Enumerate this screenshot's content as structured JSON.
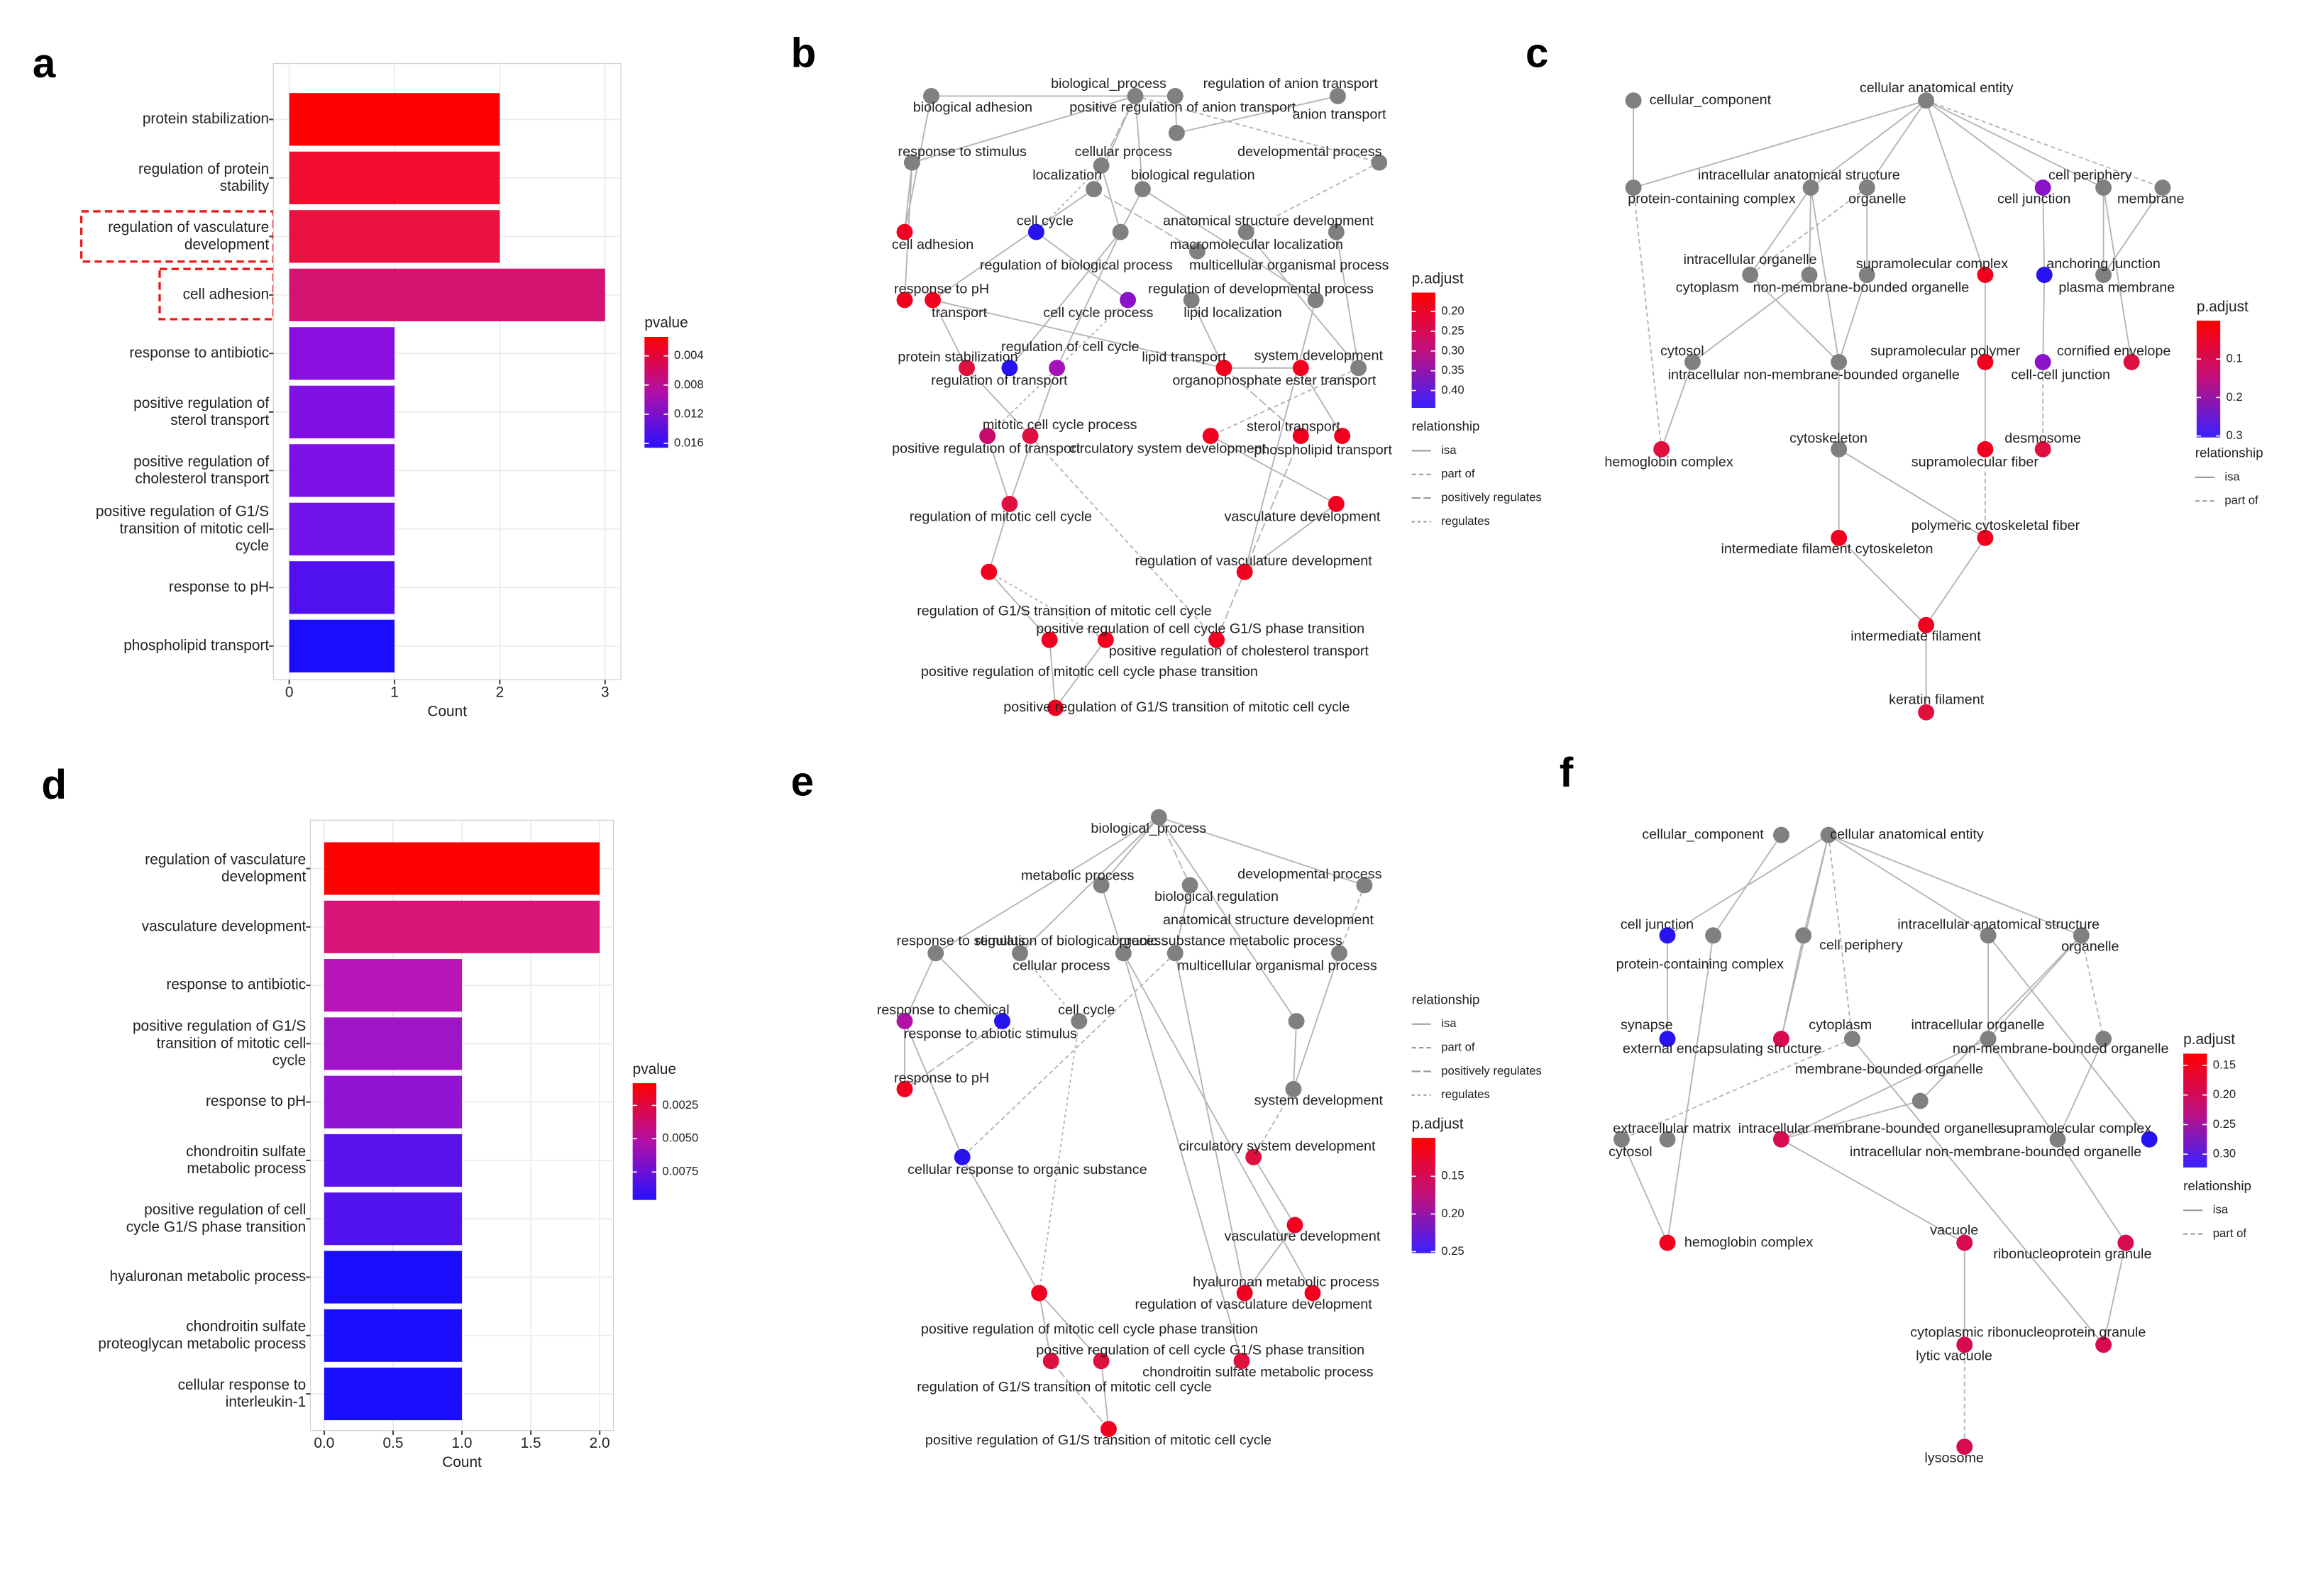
{
  "panels": [
    "a",
    "b",
    "c",
    "d",
    "e",
    "f"
  ],
  "chart_data": [
    {
      "type": "bar",
      "orientation": "horizontal",
      "xlabel": "Count",
      "categories": [
        "protein stabilization",
        "regulation of protein\nstability",
        "regulation of vasculature\ndevelopment",
        "cell adhesion",
        "response to antibiotic",
        "positive regulation of\nsterol transport",
        "positive regulation of\ncholesterol transport",
        "positive regulation of G1/S\ntransition of mitotic cell\ncycle",
        "response to pH",
        "phospholipid transport"
      ],
      "values": [
        2,
        2,
        2,
        3,
        1,
        1,
        1,
        1,
        1,
        1
      ],
      "colors": [
        "#ff0000",
        "#f20d2e",
        "#ea1040",
        "#d41270",
        "#8a0ee0",
        "#8010e4",
        "#7c10e6",
        "#7012ea",
        "#5010f0",
        "#1a0cff"
      ],
      "xlim": [
        -0.15,
        3.15
      ],
      "xticks": [
        0,
        1,
        2,
        3
      ],
      "grid": true,
      "legend": {
        "title": "pvalue",
        "lim": [
          0.0014,
          0.0166
        ],
        "ticks": [
          0.004,
          0.008,
          0.012,
          0.016
        ],
        "colors": [
          "#ff0000",
          "#b010a8",
          "#2a10ff"
        ]
      }
    },
    {
      "type": "bar",
      "orientation": "horizontal",
      "xlabel": "Count",
      "categories": [
        "regulation of vasculature\ndevelopment",
        "vasculature development",
        "response to antibiotic",
        "positive regulation of G1/S\ntransition of mitotic cell\ncycle",
        "response to pH",
        "chondroitin sulfate\nmetabolic process",
        "positive regulation of cell\ncycle G1/S phase transition",
        "hyaluronan metabolic process",
        "chondroitin sulfate\nproteoglycan metabolic process",
        "cellular response to\ninterleukin-1"
      ],
      "values": [
        2,
        2,
        1,
        1,
        1,
        1,
        1,
        1,
        1,
        1
      ],
      "colors": [
        "#ff0000",
        "#d81478",
        "#b814b8",
        "#a014c8",
        "#9014d2",
        "#5a12ec",
        "#5212ee",
        "#1a0cff",
        "#1a0cff",
        "#1a0cff"
      ],
      "xlim": [
        -0.1,
        2.1
      ],
      "xticks": [
        {
          "value": 0,
          "label": "0.0"
        },
        {
          "value": 0.5,
          "label": "0.5"
        },
        {
          "value": 1,
          "label": "1.0"
        },
        {
          "value": 1.5,
          "label": "1.5"
        },
        {
          "value": 2,
          "label": "2.0"
        }
      ],
      "grid": true,
      "legend": {
        "title": "pvalue",
        "lim": [
          0.00083,
          0.0096
        ],
        "ticks": [
          0.0025,
          {
            "value": 0.005,
            "label": "0.0050"
          },
          0.0075
        ],
        "colors": [
          "#ff0000",
          "#b010a8",
          "#2a10ff"
        ]
      }
    }
  ],
  "networks": {
    "b": {
      "nodes": [
        {
          "label": "biological adhesion",
          "color": "#808080"
        },
        {
          "label": "biological_process",
          "color": "#808080"
        },
        {
          "label": "regulation of anion transport",
          "color": "#808080"
        },
        {
          "label": "positive regulation of anion transport",
          "color": "#808080"
        },
        {
          "label": "anion transport",
          "color": "#808080"
        },
        {
          "label": "response to stimulus",
          "color": "#808080"
        },
        {
          "label": "cellular process",
          "color": "#808080"
        },
        {
          "label": "developmental process",
          "color": "#808080"
        },
        {
          "label": "localization",
          "color": "#808080"
        },
        {
          "label": "biological regulation",
          "color": "#808080"
        },
        {
          "label": "cell cycle",
          "color": "#2613f0"
        },
        {
          "label": "anatomical structure development",
          "color": "#808080"
        },
        {
          "label": "cell adhesion",
          "color": "#f2001f"
        },
        {
          "label": "macromolecular localization",
          "color": "#808080"
        },
        {
          "label": "multicellular organismal process",
          "color": "#808080"
        },
        {
          "label": "regulation of biological process",
          "color": "#808080"
        },
        {
          "label": "response to pH",
          "color": "#f2001f"
        },
        {
          "label": "regulation of developmental process",
          "color": "#808080"
        },
        {
          "label": "transport",
          "color": "#f2001f"
        },
        {
          "label": "cell cycle process",
          "color": "#8a12c8"
        },
        {
          "label": "lipid localization",
          "color": "#808080"
        },
        {
          "label": "regulation of cell cycle",
          "color": "#a412b8"
        },
        {
          "label": "protein stabilization",
          "color": "#2613f0"
        },
        {
          "label": "lipid transport",
          "color": "#f2001f"
        },
        {
          "label": "system development",
          "color": "#808080"
        },
        {
          "label": "regulation of transport",
          "color": "#e0103e"
        },
        {
          "label": "organophosphate ester transport",
          "color": "#f2001f"
        },
        {
          "label": "sterol transport",
          "color": "#f2001f"
        },
        {
          "label": "mitotic cell cycle process",
          "color": "#c80a6a"
        },
        {
          "label": "positive regulation of transport",
          "color": "#e0103e"
        },
        {
          "label": "circulatory system development",
          "color": "#f2001f"
        },
        {
          "label": "phospholipid transport",
          "color": "#f2001f"
        },
        {
          "label": "regulation of mitotic cell cycle",
          "color": "#e0103e"
        },
        {
          "label": "vasculature development",
          "color": "#f2001f"
        },
        {
          "label": "regulation of vasculature development",
          "color": "#f2001f"
        },
        {
          "label": "regulation of G1/S transition of mitotic cell cycle",
          "color": "#f2001f"
        },
        {
          "label": "positive regulation of cell cycle G1/S phase transition",
          "color": "#f2001f"
        },
        {
          "label": "positive regulation of cholesterol transport",
          "color": "#f2001f"
        },
        {
          "label": "positive regulation of mitotic cell cycle phase transition",
          "color": "#f2001f"
        },
        {
          "label": "positive regulation of G1/S transition of mitotic cell cycle",
          "color": "#f2001f"
        }
      ],
      "legend": {
        "title": "p.adjust",
        "lim": [
          0.152,
          0.444
        ],
        "ticks": [
          {
            "value": 0.2,
            "label": "0.20"
          },
          0.25,
          {
            "value": 0.3,
            "label": "0.30"
          },
          0.35,
          {
            "value": 0.4,
            "label": "0.40"
          }
        ],
        "colors": [
          "#ff0000",
          "#c0107c",
          "#3a20ff"
        ]
      },
      "relationship": {
        "title": "relationship",
        "items": [
          "isa",
          "part of",
          "positively regulates",
          "regulates"
        ]
      }
    },
    "c": {
      "nodes": [
        {
          "label": "cellular_component",
          "color": "#808080"
        },
        {
          "label": "cellular anatomical entity",
          "color": "#808080"
        },
        {
          "label": "intracellular anatomical structure",
          "color": "#808080"
        },
        {
          "label": "cell periphery",
          "color": "#808080"
        },
        {
          "label": "protein-containing complex",
          "color": "#808080"
        },
        {
          "label": "organelle",
          "color": "#808080"
        },
        {
          "label": "cell junction",
          "color": "#8a12c8"
        },
        {
          "label": "membrane",
          "color": "#808080"
        },
        {
          "label": "intracellular organelle",
          "color": "#808080"
        },
        {
          "label": "supramolecular complex",
          "color": "#f2001f"
        },
        {
          "label": "anchoring junction",
          "color": "#2613f0"
        },
        {
          "label": "cytoplasm",
          "color": "#808080"
        },
        {
          "label": "non-membrane-bounded organelle",
          "color": "#808080"
        },
        {
          "label": "plasma membrane",
          "color": "#808080"
        },
        {
          "label": "cytosol",
          "color": "#808080"
        },
        {
          "label": "supramolecular polymer",
          "color": "#f2001f"
        },
        {
          "label": "cornified envelope",
          "color": "#e0103e"
        },
        {
          "label": "intracellular non-membrane-bounded organelle",
          "color": "#808080"
        },
        {
          "label": "cell-cell junction",
          "color": "#8a12c8"
        },
        {
          "label": "cytoskeleton",
          "color": "#808080"
        },
        {
          "label": "desmosome",
          "color": "#e0103e"
        },
        {
          "label": "hemoglobin complex",
          "color": "#e0103e"
        },
        {
          "label": "supramolecular fiber",
          "color": "#f2001f"
        },
        {
          "label": "polymeric cytoskeletal fiber",
          "color": "#f2001f"
        },
        {
          "label": "intermediate filament cytoskeleton",
          "color": "#f2001f"
        },
        {
          "label": "intermediate filament",
          "color": "#f2001f"
        },
        {
          "label": "keratin filament",
          "color": "#e0103e"
        }
      ],
      "legend": {
        "title": "p.adjust",
        "lim": [
          0.0,
          0.304
        ],
        "ticks": [
          0.1,
          0.2,
          0.3
        ],
        "colors": [
          "#ff0000",
          "#c0107c",
          "#3a20ff"
        ]
      },
      "relationship": {
        "title": "relationship",
        "items": [
          "isa",
          "part of"
        ]
      }
    },
    "e": {
      "nodes": [
        {
          "label": "biological_process",
          "color": "#808080"
        },
        {
          "label": "developmental process",
          "color": "#808080"
        },
        {
          "label": "metabolic process",
          "color": "#808080"
        },
        {
          "label": "biological regulation",
          "color": "#808080"
        },
        {
          "label": "anatomical structure development",
          "color": "#808080"
        },
        {
          "label": "response to stimulus",
          "color": "#808080"
        },
        {
          "label": "regulation of biological process",
          "color": "#808080"
        },
        {
          "label": "organic substance metabolic process",
          "color": "#808080"
        },
        {
          "label": "cellular process",
          "color": "#808080"
        },
        {
          "label": "multicellular organismal process",
          "color": "#808080"
        },
        {
          "label": "response to chemical",
          "color": "#b012a8"
        },
        {
          "label": "cell cycle",
          "color": "#808080"
        },
        {
          "label": "response to abiotic stimulus",
          "color": "#2613f0"
        },
        {
          "label": "response to pH",
          "color": "#f2001f"
        },
        {
          "label": "system development",
          "color": "#808080"
        },
        {
          "label": "circulatory system development",
          "color": "#e0103e"
        },
        {
          "label": "cellular response to organic substance",
          "color": "#2613f0"
        },
        {
          "label": "vasculature development",
          "color": "#f2001f"
        },
        {
          "label": "hyaluronan metabolic process",
          "color": "#f2001f"
        },
        {
          "label": "regulation of vasculature development",
          "color": "#f2001f"
        },
        {
          "label": "positive regulation of mitotic cell cycle phase transition",
          "color": "#f2001f"
        },
        {
          "label": "positive regulation of cell cycle G1/S phase transition",
          "color": "#e0103e"
        },
        {
          "label": "chondroitin sulfate metabolic process",
          "color": "#e0103e"
        },
        {
          "label": "regulation of G1/S transition of mitotic cell cycle",
          "color": "#e0103e"
        },
        {
          "label": "positive regulation of G1/S transition of mitotic cell cycle",
          "color": "#f2001f"
        }
      ],
      "legend": {
        "title": "p.adjust",
        "lim": [
          0.099,
          0.252
        ],
        "ticks": [
          0.15,
          {
            "value": 0.2,
            "label": "0.20"
          },
          0.25
        ],
        "colors": [
          "#ff0000",
          "#c0107c",
          "#3a20ff"
        ]
      },
      "relationship": {
        "title": "relationship",
        "items": [
          "isa",
          "part of",
          "positively regulates",
          "regulates"
        ]
      }
    },
    "f": {
      "nodes": [
        {
          "label": "cellular_component",
          "color": "#808080"
        },
        {
          "label": "cellular anatomical entity",
          "color": "#808080"
        },
        {
          "label": "cell junction",
          "color": "#2613f0"
        },
        {
          "label": "intracellular anatomical structure",
          "color": "#808080"
        },
        {
          "label": "cell periphery",
          "color": "#808080"
        },
        {
          "label": "organelle",
          "color": "#808080"
        },
        {
          "label": "protein-containing complex",
          "color": "#808080"
        },
        {
          "label": "synapse",
          "color": "#2613f0"
        },
        {
          "label": "cytoplasm",
          "color": "#808080"
        },
        {
          "label": "intracellular organelle",
          "color": "#808080"
        },
        {
          "label": "external encapsulating structure",
          "color": "#d80a50"
        },
        {
          "label": "non-membrane-bounded organelle",
          "color": "#808080"
        },
        {
          "label": "membrane-bounded organelle",
          "color": "#808080"
        },
        {
          "label": "extracellular matrix",
          "color": "#808080"
        },
        {
          "label": "intracellular membrane-bounded organelle",
          "color": "#d80a50"
        },
        {
          "label": "supramolecular complex",
          "color": "#2613f0"
        },
        {
          "label": "cytosol",
          "color": "#808080"
        },
        {
          "label": "intracellular non-membrane-bounded organelle",
          "color": "#808080"
        },
        {
          "label": "hemoglobin complex",
          "color": "#f2001f"
        },
        {
          "label": "vacuole",
          "color": "#d80a50"
        },
        {
          "label": "ribonucleoprotein granule",
          "color": "#d80a50"
        },
        {
          "label": "cytoplasmic ribonucleoprotein granule",
          "color": "#d80a50"
        },
        {
          "label": "lytic vacuole",
          "color": "#d80a50"
        },
        {
          "label": "lysosome",
          "color": "#d80a50"
        }
      ],
      "legend": {
        "title": "p.adjust",
        "lim": [
          0.13,
          0.3225
        ],
        "ticks": [
          0.15,
          {
            "value": 0.2,
            "label": "0.20"
          },
          0.25,
          {
            "value": 0.3,
            "label": "0.30"
          }
        ],
        "colors": [
          "#ff0000",
          "#c0107c",
          "#3a20ff"
        ]
      },
      "relationship": {
        "title": "relationship",
        "items": [
          "isa",
          "part of"
        ]
      }
    }
  }
}
